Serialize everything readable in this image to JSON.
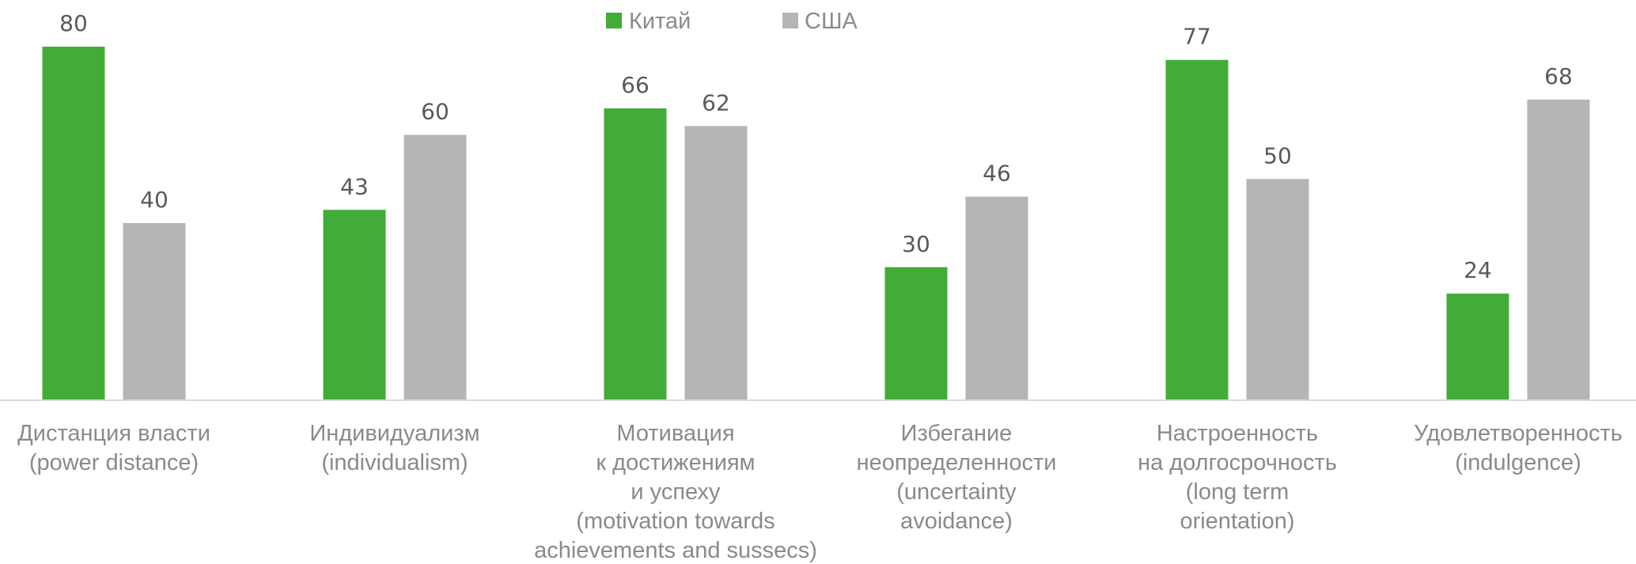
{
  "chart_data": {
    "type": "bar",
    "title": "",
    "xlabel": "",
    "ylabel": "",
    "ylim": [
      0,
      80
    ],
    "grid": false,
    "legend_position": "top-center",
    "categories": [
      [
        "Дистанция власти",
        "(power distance)"
      ],
      [
        "Индивидуализм",
        "(individualism)"
      ],
      [
        "Мотивация",
        "к достижениям",
        "и успеху",
        "(motivation towards",
        "achievements and sussecs)"
      ],
      [
        "Избегание",
        "неопределенности",
        "(uncertainty",
        "avoidance)"
      ],
      [
        "Настроенность",
        "на долгосрочность",
        "(long term",
        "orientation)"
      ],
      [
        "Удовлетворенность",
        "(indulgence)"
      ]
    ],
    "series": [
      {
        "name": "Китай",
        "color": "#43ab37",
        "values": [
          80,
          43,
          66,
          30,
          77,
          24
        ]
      },
      {
        "name": "США",
        "color": "#b5b5b5",
        "values": [
          40,
          60,
          62,
          46,
          50,
          68
        ]
      }
    ]
  }
}
